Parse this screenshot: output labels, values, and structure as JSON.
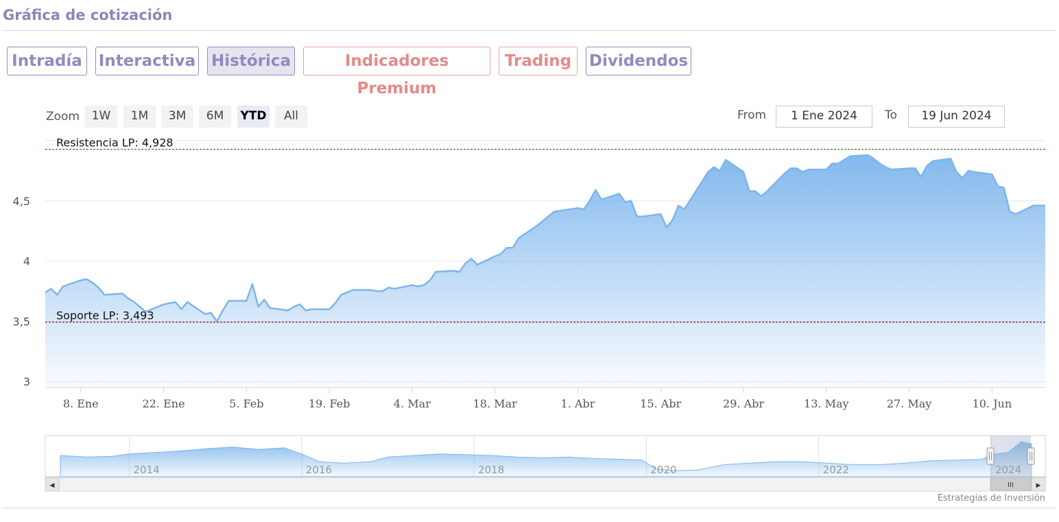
{
  "header": {
    "title": "Gráfica de cotización"
  },
  "tabs": [
    {
      "label": "Intradía",
      "style": "blue",
      "active": false
    },
    {
      "label": "Interactiva",
      "style": "blue",
      "active": false
    },
    {
      "label": "Histórica",
      "style": "blue",
      "active": true
    },
    {
      "label": "Indicadores Premium",
      "style": "red",
      "active": false
    },
    {
      "label": "Trading",
      "style": "red",
      "active": false
    },
    {
      "label": "Dividendos",
      "style": "blue",
      "active": false
    }
  ],
  "range_selector": {
    "zoom_label": "Zoom",
    "buttons": [
      "1W",
      "1M",
      "3M",
      "6M",
      "YTD",
      "All"
    ],
    "selected": "YTD",
    "from_label": "From",
    "from_value": "1 Ene 2024",
    "to_label": "To",
    "to_value": "19 Jun 2024"
  },
  "colors": {
    "line": "#7cb5ec",
    "resistance": "#2e7d32",
    "support": "#8b1a2b",
    "tab_blue": "#8f8bbf",
    "tab_red": "#e58a8a"
  },
  "chart_data": {
    "type": "area",
    "title": "",
    "xlabel": "",
    "ylabel": "",
    "ylim": [
      2.95,
      5.0
    ],
    "yticks": [
      3,
      3.5,
      4,
      4.5
    ],
    "ytick_labels": [
      "3",
      "3,5",
      "4",
      "4,5"
    ],
    "grid": true,
    "xlim": [
      "2024-01-02",
      "2024-06-19"
    ],
    "xticks": [
      {
        "date": "2024-01-08",
        "label": "8. Ene"
      },
      {
        "date": "2024-01-22",
        "label": "22. Ene"
      },
      {
        "date": "2024-02-05",
        "label": "5. Feb"
      },
      {
        "date": "2024-02-19",
        "label": "19. Feb"
      },
      {
        "date": "2024-03-04",
        "label": "4. Mar"
      },
      {
        "date": "2024-03-18",
        "label": "18. Mar"
      },
      {
        "date": "2024-04-01",
        "label": "1. Abr"
      },
      {
        "date": "2024-04-15",
        "label": "15. Abr"
      },
      {
        "date": "2024-04-29",
        "label": "29. Abr"
      },
      {
        "date": "2024-05-13",
        "label": "13. May"
      },
      {
        "date": "2024-05-27",
        "label": "27. May"
      },
      {
        "date": "2024-06-10",
        "label": "10. Jun"
      }
    ],
    "series": [
      {
        "points": [
          [
            "2024-01-02",
            3.74
          ],
          [
            "2024-01-03",
            3.77
          ],
          [
            "2024-01-04",
            3.72
          ],
          [
            "2024-01-05",
            3.79
          ],
          [
            "2024-01-08",
            3.84
          ],
          [
            "2024-01-09",
            3.85
          ],
          [
            "2024-01-10",
            3.82
          ],
          [
            "2024-01-11",
            3.78
          ],
          [
            "2024-01-12",
            3.72
          ],
          [
            "2024-01-15",
            3.73
          ],
          [
            "2024-01-16",
            3.69
          ],
          [
            "2024-01-17",
            3.66
          ],
          [
            "2024-01-18",
            3.62
          ],
          [
            "2024-01-19",
            3.58
          ],
          [
            "2024-01-22",
            3.64
          ],
          [
            "2024-01-23",
            3.65
          ],
          [
            "2024-01-24",
            3.66
          ],
          [
            "2024-01-25",
            3.6
          ],
          [
            "2024-01-26",
            3.66
          ],
          [
            "2024-01-29",
            3.56
          ],
          [
            "2024-01-30",
            3.57
          ],
          [
            "2024-01-31",
            3.5
          ],
          [
            "2024-02-01",
            3.59
          ],
          [
            "2024-02-02",
            3.67
          ],
          [
            "2024-02-05",
            3.67
          ],
          [
            "2024-02-06",
            3.81
          ],
          [
            "2024-02-07",
            3.62
          ],
          [
            "2024-02-08",
            3.68
          ],
          [
            "2024-02-09",
            3.61
          ],
          [
            "2024-02-12",
            3.59
          ],
          [
            "2024-02-13",
            3.62
          ],
          [
            "2024-02-14",
            3.64
          ],
          [
            "2024-02-15",
            3.59
          ],
          [
            "2024-02-16",
            3.6
          ],
          [
            "2024-02-19",
            3.6
          ],
          [
            "2024-02-20",
            3.65
          ],
          [
            "2024-02-21",
            3.72
          ],
          [
            "2024-02-22",
            3.74
          ],
          [
            "2024-02-23",
            3.76
          ],
          [
            "2024-02-26",
            3.76
          ],
          [
            "2024-02-27",
            3.75
          ],
          [
            "2024-02-28",
            3.75
          ],
          [
            "2024-02-29",
            3.78
          ],
          [
            "2024-03-01",
            3.77
          ],
          [
            "2024-03-04",
            3.8
          ],
          [
            "2024-03-05",
            3.79
          ],
          [
            "2024-03-06",
            3.8
          ],
          [
            "2024-03-07",
            3.84
          ],
          [
            "2024-03-08",
            3.91
          ],
          [
            "2024-03-11",
            3.92
          ],
          [
            "2024-03-12",
            3.91
          ],
          [
            "2024-03-13",
            3.98
          ],
          [
            "2024-03-14",
            4.02
          ],
          [
            "2024-03-15",
            3.97
          ],
          [
            "2024-03-18",
            4.04
          ],
          [
            "2024-03-19",
            4.06
          ],
          [
            "2024-03-20",
            4.11
          ],
          [
            "2024-03-21",
            4.11
          ],
          [
            "2024-03-22",
            4.19
          ],
          [
            "2024-03-25",
            4.29
          ],
          [
            "2024-03-26",
            4.33
          ],
          [
            "2024-03-27",
            4.37
          ],
          [
            "2024-03-28",
            4.41
          ],
          [
            "2024-04-01",
            4.44
          ],
          [
            "2024-04-02",
            4.43
          ],
          [
            "2024-04-03",
            4.5
          ],
          [
            "2024-04-04",
            4.59
          ],
          [
            "2024-04-05",
            4.51
          ],
          [
            "2024-04-08",
            4.56
          ],
          [
            "2024-04-09",
            4.49
          ],
          [
            "2024-04-10",
            4.5
          ],
          [
            "2024-04-11",
            4.37
          ],
          [
            "2024-04-12",
            4.37
          ],
          [
            "2024-04-15",
            4.39
          ],
          [
            "2024-04-16",
            4.28
          ],
          [
            "2024-04-17",
            4.34
          ],
          [
            "2024-04-18",
            4.46
          ],
          [
            "2024-04-19",
            4.43
          ],
          [
            "2024-04-22",
            4.66
          ],
          [
            "2024-04-23",
            4.74
          ],
          [
            "2024-04-24",
            4.78
          ],
          [
            "2024-04-25",
            4.75
          ],
          [
            "2024-04-26",
            4.84
          ],
          [
            "2024-04-29",
            4.74
          ],
          [
            "2024-04-30",
            4.58
          ],
          [
            "2024-05-01",
            4.58
          ],
          [
            "2024-05-02",
            4.54
          ],
          [
            "2024-05-03",
            4.58
          ],
          [
            "2024-05-06",
            4.73
          ],
          [
            "2024-05-07",
            4.77
          ],
          [
            "2024-05-08",
            4.77
          ],
          [
            "2024-05-09",
            4.74
          ],
          [
            "2024-05-10",
            4.76
          ],
          [
            "2024-05-13",
            4.76
          ],
          [
            "2024-05-14",
            4.81
          ],
          [
            "2024-05-15",
            4.81
          ],
          [
            "2024-05-16",
            4.84
          ],
          [
            "2024-05-17",
            4.87
          ],
          [
            "2024-05-20",
            4.88
          ],
          [
            "2024-05-21",
            4.85
          ],
          [
            "2024-05-22",
            4.81
          ],
          [
            "2024-05-23",
            4.78
          ],
          [
            "2024-05-24",
            4.76
          ],
          [
            "2024-05-27",
            4.77
          ],
          [
            "2024-05-28",
            4.77
          ],
          [
            "2024-05-29",
            4.7
          ],
          [
            "2024-05-30",
            4.79
          ],
          [
            "2024-05-31",
            4.83
          ],
          [
            "2024-06-03",
            4.85
          ],
          [
            "2024-06-04",
            4.74
          ],
          [
            "2024-06-05",
            4.69
          ],
          [
            "2024-06-06",
            4.75
          ],
          [
            "2024-06-07",
            4.74
          ],
          [
            "2024-06-10",
            4.72
          ],
          [
            "2024-06-11",
            4.62
          ],
          [
            "2024-06-12",
            4.61
          ],
          [
            "2024-06-13",
            4.41
          ],
          [
            "2024-06-14",
            4.39
          ],
          [
            "2024-06-17",
            4.46
          ],
          [
            "2024-06-18",
            4.46
          ],
          [
            "2024-06-19",
            4.46
          ]
        ]
      }
    ],
    "annotations": [
      {
        "label": "Resistencia LP: 4,928",
        "value": 4.928,
        "color": "#2e7d32"
      },
      {
        "label": "Soporte LP: 3,493",
        "value": 3.493,
        "color": "#8b1a2b"
      }
    ],
    "navigator": {
      "year_labels": [
        "2014",
        "2016",
        "2018",
        "2020",
        "2022",
        "2024"
      ],
      "years": [
        2014,
        2016,
        2018,
        2020,
        2022,
        2024
      ],
      "start_year": 2013.2,
      "end_year": 2024.47,
      "points": [
        [
          2013.2,
          3.7
        ],
        [
          2013.5,
          3.6
        ],
        [
          2013.8,
          3.65
        ],
        [
          2014.0,
          3.8
        ],
        [
          2014.3,
          3.9
        ],
        [
          2014.6,
          4.0
        ],
        [
          2014.9,
          4.15
        ],
        [
          2015.2,
          4.25
        ],
        [
          2015.5,
          4.1
        ],
        [
          2015.8,
          4.2
        ],
        [
          2016.0,
          3.8
        ],
        [
          2016.2,
          3.3
        ],
        [
          2016.5,
          3.2
        ],
        [
          2016.8,
          3.3
        ],
        [
          2017.0,
          3.6
        ],
        [
          2017.3,
          3.7
        ],
        [
          2017.6,
          3.8
        ],
        [
          2017.9,
          3.75
        ],
        [
          2018.2,
          3.7
        ],
        [
          2018.5,
          3.6
        ],
        [
          2018.8,
          3.55
        ],
        [
          2019.1,
          3.6
        ],
        [
          2019.4,
          3.5
        ],
        [
          2019.7,
          3.45
        ],
        [
          2019.95,
          3.4
        ],
        [
          2020.1,
          2.85
        ],
        [
          2020.3,
          2.7
        ],
        [
          2020.6,
          2.75
        ],
        [
          2020.9,
          3.1
        ],
        [
          2021.2,
          3.2
        ],
        [
          2021.5,
          3.3
        ],
        [
          2021.8,
          3.3
        ],
        [
          2022.1,
          3.2
        ],
        [
          2022.4,
          3.1
        ],
        [
          2022.7,
          3.1
        ],
        [
          2023.0,
          3.2
        ],
        [
          2023.3,
          3.35
        ],
        [
          2023.6,
          3.4
        ],
        [
          2023.9,
          3.45
        ],
        [
          2024.0,
          3.75
        ],
        [
          2024.2,
          3.9
        ],
        [
          2024.35,
          4.6
        ],
        [
          2024.47,
          4.46
        ]
      ]
    }
  },
  "scrollbar": {
    "grip_glyph": "III",
    "left_arrow": "◀",
    "right_arrow": "▶"
  },
  "footer": {
    "attribution": "Estrategias de Inversión"
  }
}
